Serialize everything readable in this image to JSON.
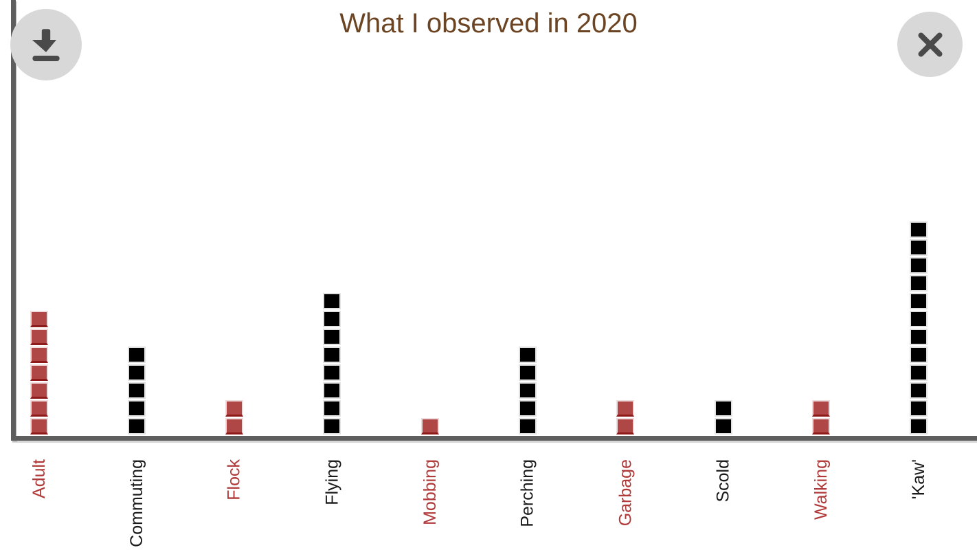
{
  "header": {
    "title": "What I observed in 2020"
  },
  "toolbar": {
    "download_button": "download-icon",
    "close_button": "close-icon"
  },
  "colors": {
    "title_text": "#6b4423",
    "unit_red": "#b04747",
    "unit_red_shade": "#8e1a1a",
    "unit_red_border": "#f0dcdc",
    "unit_black": "#000000",
    "unit_black_border": "#e2e2e2",
    "label_red": "#b03a3a",
    "label_black": "#1a1a1a",
    "axis": "#5e5e5e",
    "button_bg": "#d8d8d8",
    "button_icon": "#4a4a4a"
  },
  "chart_data": {
    "type": "bar",
    "subtype": "unit-square-stack",
    "title": "What I observed in 2020",
    "categories": [
      "Adult",
      "Commuting",
      "Flock",
      "Flying",
      "Mobbing",
      "Perching",
      "Garbage",
      "Scold",
      "Walking",
      "'Kaw'"
    ],
    "values": [
      7,
      5,
      2,
      8,
      1,
      5,
      2,
      2,
      2,
      12
    ],
    "series_colors": [
      "red",
      "black",
      "red",
      "black",
      "red",
      "black",
      "red",
      "black",
      "red",
      "black"
    ],
    "xlabel": "",
    "ylabel": "",
    "ylim": [
      0,
      13
    ],
    "grid": false,
    "legend": false,
    "tick_label_rotation_deg": -90
  }
}
